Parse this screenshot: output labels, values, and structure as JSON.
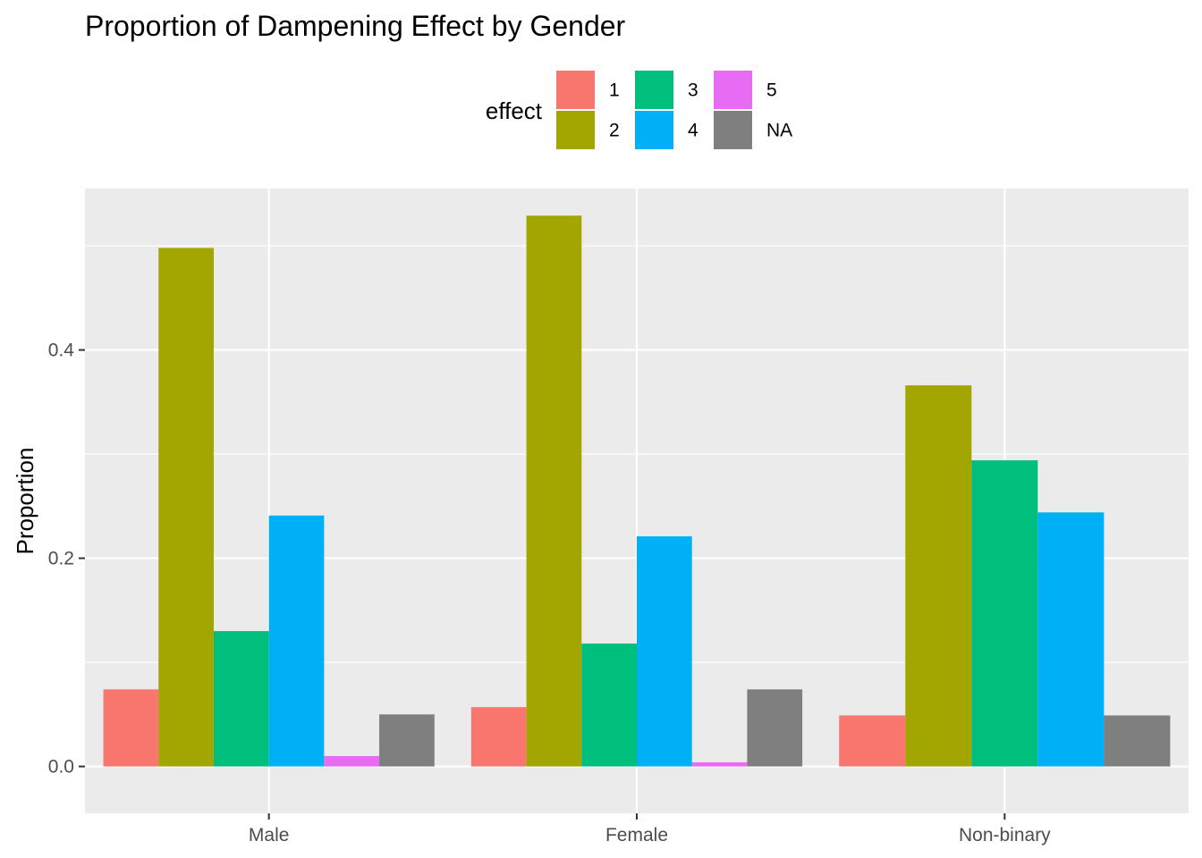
{
  "chart_data": {
    "type": "bar",
    "title": "Proportion of Dampening Effect by Gender",
    "xlabel": "",
    "ylabel": "Proportion",
    "categories": [
      "Male",
      "Female",
      "Non-binary"
    ],
    "ylim": [
      -0.045,
      0.555
    ],
    "y_ticks": [
      0.0,
      0.2,
      0.4
    ],
    "y_tick_labels": [
      "0.0",
      "0.2",
      "0.4"
    ],
    "grid": true,
    "legend": {
      "title": "effect",
      "position": "top",
      "ncol": 3
    },
    "series": [
      {
        "name": "1",
        "color": "#F8766D",
        "values": [
          0.074,
          0.057,
          0.049
        ]
      },
      {
        "name": "2",
        "color": "#A3A500",
        "values": [
          0.498,
          0.529,
          0.366
        ]
      },
      {
        "name": "3",
        "color": "#00BF7D",
        "values": [
          0.13,
          0.118,
          0.294
        ]
      },
      {
        "name": "4",
        "color": "#00B0F6",
        "values": [
          0.241,
          0.221,
          0.244
        ]
      },
      {
        "name": "5",
        "color": "#E76BF3",
        "values": [
          0.01,
          0.004,
          null
        ]
      },
      {
        "name": "NA",
        "color": "#7F7F7F",
        "values": [
          0.05,
          0.074,
          0.049
        ]
      }
    ]
  }
}
